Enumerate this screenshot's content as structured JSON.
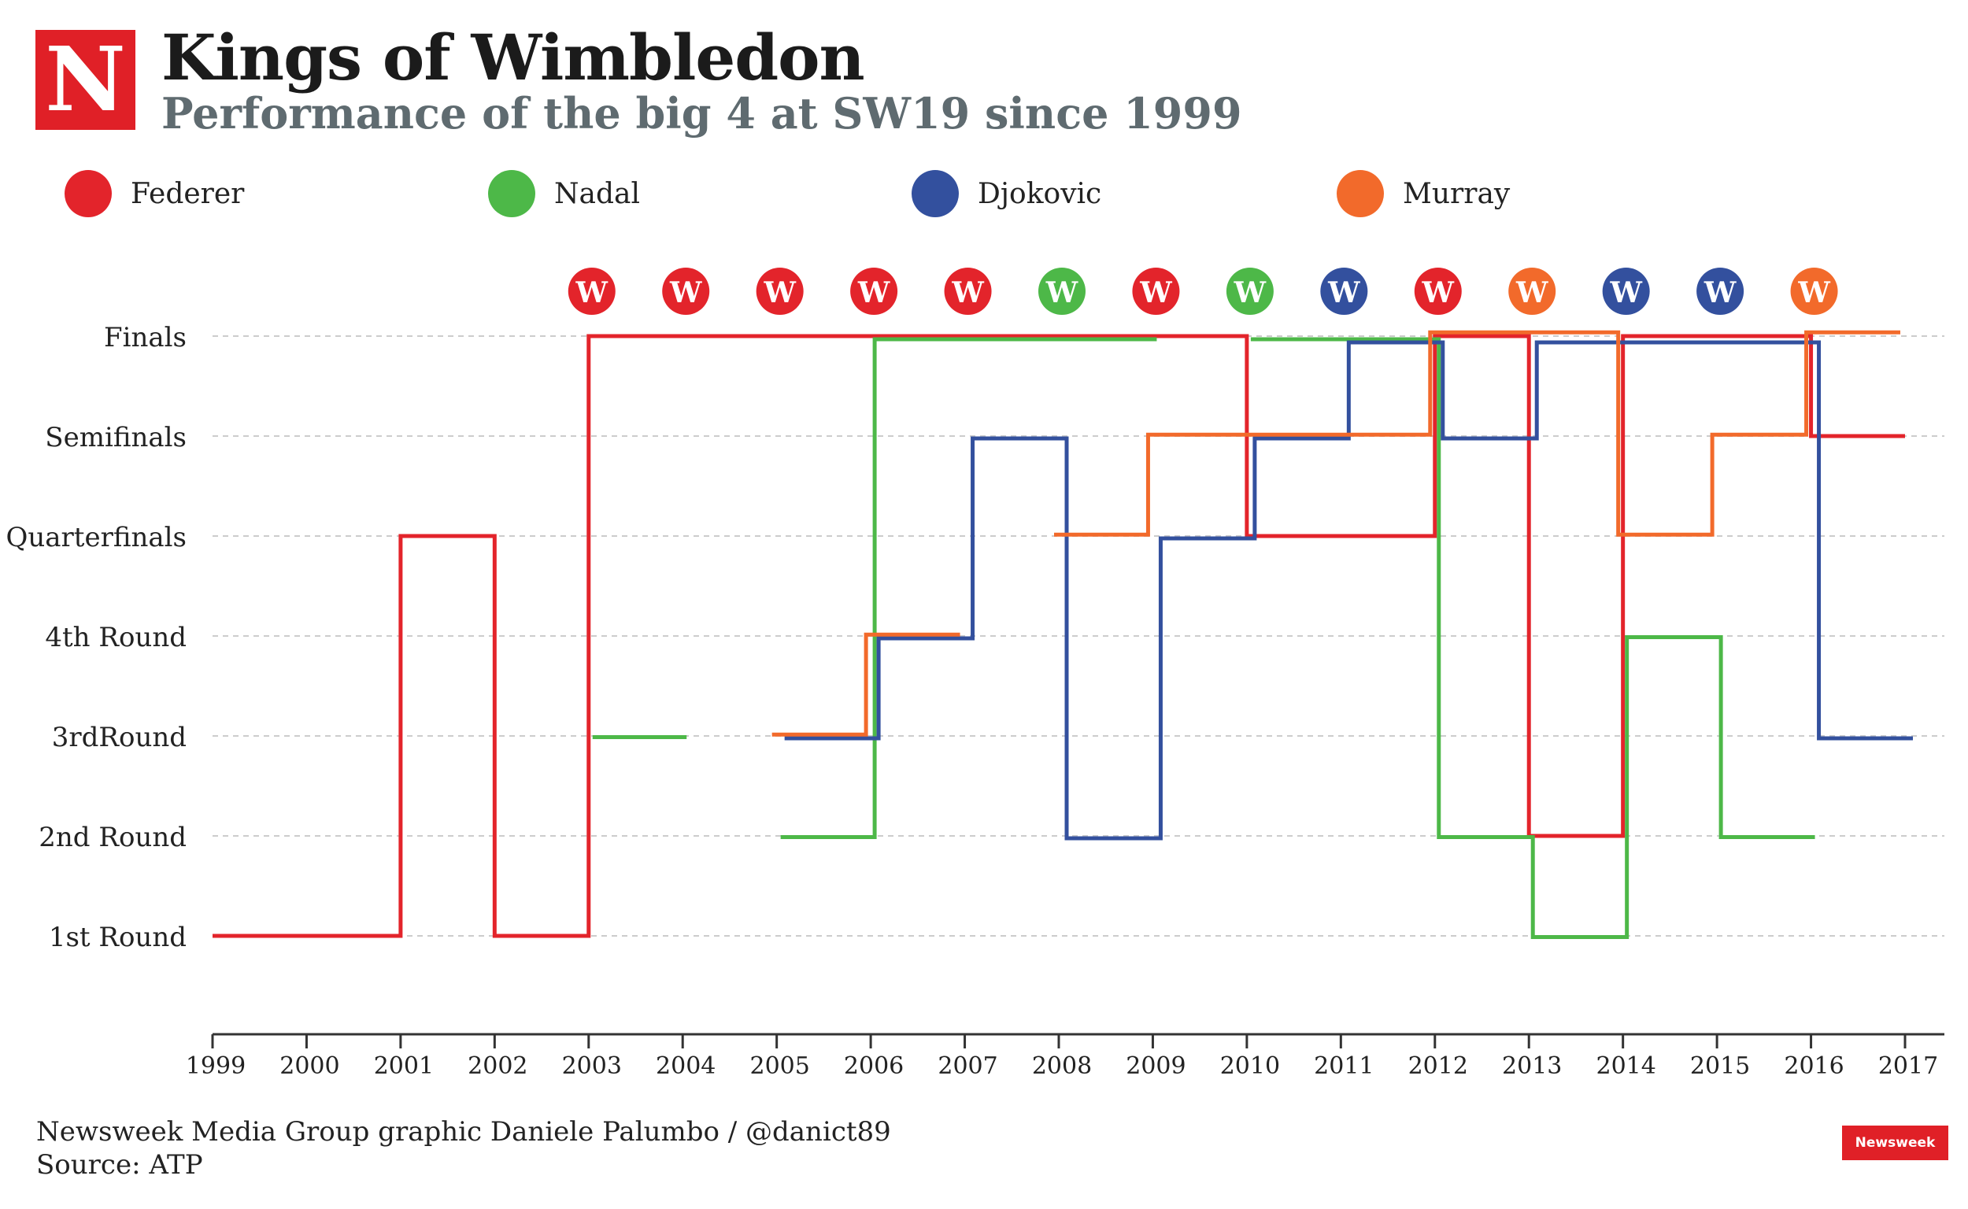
{
  "header": {
    "logo_letter": "N",
    "title": "Kings of Wimbledon",
    "subtitle": "Performance of the big 4 at SW19 since 1999"
  },
  "colors": {
    "federer": "#e3242b",
    "nadal": "#4db848",
    "djokovic": "#33509e",
    "murray": "#f26a2b",
    "grid": "#cccccc",
    "axis": "#333333",
    "brand": "#e02027"
  },
  "legend": [
    {
      "label": "Federer",
      "color": "#e3242b"
    },
    {
      "label": "Nadal",
      "color": "#4db848"
    },
    {
      "label": "Djokovic",
      "color": "#33509e"
    },
    {
      "label": "Murray",
      "color": "#f26a2b"
    }
  ],
  "chart_data": {
    "type": "line",
    "step": true,
    "x_ticks": [
      1999,
      2000,
      2001,
      2002,
      2003,
      2004,
      2005,
      2006,
      2007,
      2008,
      2009,
      2010,
      2011,
      2012,
      2013,
      2014,
      2015,
      2016,
      2017
    ],
    "xlim": [
      1999,
      2017
    ],
    "y_categories": [
      "1st Round",
      "2nd Round",
      "3rdRound",
      "4th Round",
      "Quarterfinals",
      "Semifinals",
      "Finals"
    ],
    "series": [
      {
        "name": "Federer",
        "color": "#e3242b",
        "points": [
          {
            "year": 1999,
            "round": 1
          },
          {
            "year": 2000,
            "round": 1
          },
          {
            "year": 2001,
            "round": 5
          },
          {
            "year": 2002,
            "round": 1
          },
          {
            "year": 2003,
            "round": 7
          },
          {
            "year": 2004,
            "round": 7
          },
          {
            "year": 2005,
            "round": 7
          },
          {
            "year": 2006,
            "round": 7
          },
          {
            "year": 2007,
            "round": 7
          },
          {
            "year": 2008,
            "round": 7
          },
          {
            "year": 2009,
            "round": 7
          },
          {
            "year": 2010,
            "round": 5
          },
          {
            "year": 2011,
            "round": 5
          },
          {
            "year": 2012,
            "round": 7
          },
          {
            "year": 2013,
            "round": 2
          },
          {
            "year": 2014,
            "round": 7
          },
          {
            "year": 2015,
            "round": 7
          },
          {
            "year": 2016,
            "round": 6
          }
        ]
      },
      {
        "name": "Nadal",
        "color": "#4db848",
        "points": [
          {
            "year": 2003,
            "round": 3
          },
          {
            "year": 2005,
            "round": 2
          },
          {
            "year": 2006,
            "round": 7
          },
          {
            "year": 2007,
            "round": 7
          },
          {
            "year": 2008,
            "round": 7
          },
          {
            "year": 2010,
            "round": 7
          },
          {
            "year": 2011,
            "round": 7
          },
          {
            "year": 2012,
            "round": 2
          },
          {
            "year": 2013,
            "round": 1
          },
          {
            "year": 2014,
            "round": 4
          },
          {
            "year": 2015,
            "round": 2
          }
        ]
      },
      {
        "name": "Djokovic",
        "color": "#33509e",
        "points": [
          {
            "year": 2005,
            "round": 3
          },
          {
            "year": 2006,
            "round": 4
          },
          {
            "year": 2007,
            "round": 6
          },
          {
            "year": 2008,
            "round": 2
          },
          {
            "year": 2009,
            "round": 5
          },
          {
            "year": 2010,
            "round": 6
          },
          {
            "year": 2011,
            "round": 7
          },
          {
            "year": 2012,
            "round": 6
          },
          {
            "year": 2013,
            "round": 7
          },
          {
            "year": 2014,
            "round": 7
          },
          {
            "year": 2015,
            "round": 7
          },
          {
            "year": 2016,
            "round": 3
          }
        ]
      },
      {
        "name": "Murray",
        "color": "#f26a2b",
        "points": [
          {
            "year": 2005,
            "round": 3
          },
          {
            "year": 2006,
            "round": 4
          },
          {
            "year": 2008,
            "round": 5
          },
          {
            "year": 2009,
            "round": 6
          },
          {
            "year": 2010,
            "round": 6
          },
          {
            "year": 2011,
            "round": 6
          },
          {
            "year": 2012,
            "round": 7
          },
          {
            "year": 2013,
            "round": 7
          },
          {
            "year": 2014,
            "round": 5
          },
          {
            "year": 2015,
            "round": 6
          },
          {
            "year": 2016,
            "round": 7
          }
        ]
      }
    ],
    "winners": [
      {
        "year": 2003,
        "player": "Federer",
        "label": "W"
      },
      {
        "year": 2004,
        "player": "Federer",
        "label": "W"
      },
      {
        "year": 2005,
        "player": "Federer",
        "label": "W"
      },
      {
        "year": 2006,
        "player": "Federer",
        "label": "W"
      },
      {
        "year": 2007,
        "player": "Federer",
        "label": "W"
      },
      {
        "year": 2008,
        "player": "Nadal",
        "label": "W"
      },
      {
        "year": 2009,
        "player": "Federer",
        "label": "W"
      },
      {
        "year": 2010,
        "player": "Nadal",
        "label": "W"
      },
      {
        "year": 2011,
        "player": "Djokovic",
        "label": "W"
      },
      {
        "year": 2012,
        "player": "Federer",
        "label": "W"
      },
      {
        "year": 2013,
        "player": "Murray",
        "label": "W"
      },
      {
        "year": 2014,
        "player": "Djokovic",
        "label": "W"
      },
      {
        "year": 2015,
        "player": "Djokovic",
        "label": "W"
      },
      {
        "year": 2016,
        "player": "Murray",
        "label": "W"
      }
    ],
    "grid": true
  },
  "footer": {
    "credit": "Newsweek Media Group graphic Daniele Palumbo / @danict89",
    "source": "Source: ATP",
    "brand": "Newsweek"
  }
}
